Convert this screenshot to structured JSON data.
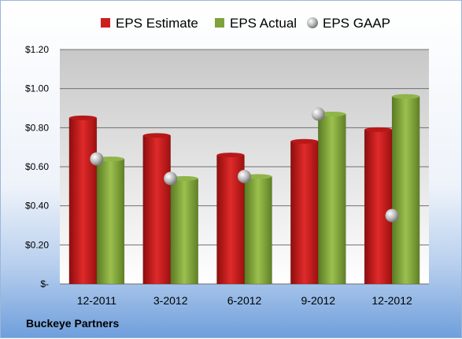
{
  "chart_data": {
    "type": "bar",
    "categories": [
      "12-2011",
      "3-2012",
      "6-2012",
      "9-2012",
      "12-2012"
    ],
    "series": [
      {
        "name": "EPS Estimate",
        "values": [
          0.85,
          0.76,
          0.66,
          0.73,
          0.79
        ],
        "color": "#cc1f1f",
        "kind": "bar"
      },
      {
        "name": "EPS Actual",
        "values": [
          0.64,
          0.54,
          0.55,
          0.87,
          0.96
        ],
        "color": "#7fa23c",
        "kind": "bar"
      },
      {
        "name": "EPS GAAP",
        "values": [
          0.64,
          0.54,
          0.55,
          0.87,
          0.35
        ],
        "color": "#c8c8c8",
        "kind": "marker"
      }
    ],
    "yticks": [
      "$-",
      "$0.20",
      "$0.40",
      "$0.60",
      "$0.80",
      "$1.00",
      "$1.20"
    ],
    "ylim": [
      0,
      1.2
    ],
    "grid": true,
    "legend_position": "top"
  },
  "company": "Buckeye Partners"
}
